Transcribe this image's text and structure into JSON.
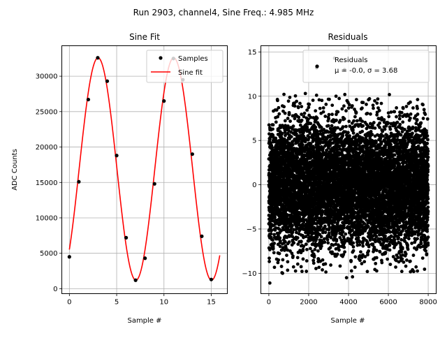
{
  "figure_title": "Run 2903, channel4, Sine Freq.: 4.985 MHz",
  "chart_data": [
    {
      "type": "line",
      "title": "Sine Fit",
      "xlabel": "Sample #",
      "ylabel": "ADC Counts",
      "xlim": [
        -0.8,
        16.7
      ],
      "ylim": [
        -700,
        34300
      ],
      "xticks": [
        0,
        5,
        10,
        15
      ],
      "yticks": [
        0,
        5000,
        10000,
        15000,
        20000,
        25000,
        30000
      ],
      "grid": true,
      "legend_position": "top-right",
      "series": [
        {
          "name": "Samples",
          "style": "markers",
          "color": "#000000",
          "x": [
            0,
            1,
            2,
            3,
            4,
            5,
            6,
            7,
            8,
            9,
            10,
            11,
            12,
            13,
            14,
            15
          ],
          "y": [
            4500,
            15100,
            26700,
            32600,
            29300,
            18800,
            7200,
            1200,
            4300,
            14800,
            26500,
            32500,
            29500,
            19000,
            7400,
            1300
          ]
        },
        {
          "name": "Sine fit",
          "style": "line",
          "color": "#ff0000",
          "model": {
            "amplitude": 15700,
            "offset": 16900,
            "period": 8.0,
            "phase_at_zero": -0.81,
            "x_start": 0,
            "x_end": 15.9
          }
        }
      ]
    },
    {
      "type": "scatter",
      "title": "Residuals",
      "xlabel": "Sample #",
      "ylabel": "",
      "xlim": [
        -400,
        8400
      ],
      "ylim": [
        -12.3,
        15.7
      ],
      "xticks": [
        0,
        2000,
        4000,
        6000,
        8000
      ],
      "yticks": [
        -10,
        -5,
        0,
        5,
        10,
        15
      ],
      "grid": true,
      "legend_position": "top-right",
      "series": [
        {
          "name": "Residuals",
          "color": "#000000",
          "n_points": 8000,
          "x_range": [
            0,
            8000
          ],
          "mean": -0.0,
          "sigma": 3.68,
          "outliers": [
            {
              "x": 50,
              "y": -11.1
            },
            {
              "x": 3900,
              "y": -10.5
            },
            {
              "x": 4200,
              "y": -10.4
            },
            {
              "x": 2400,
              "y": 13.2
            },
            {
              "x": 3300,
              "y": 14.3
            },
            {
              "x": 3800,
              "y": 13.0
            }
          ]
        }
      ],
      "legend_lines": [
        "Residuals",
        "μ = -0.0, σ = 3.68"
      ]
    }
  ]
}
